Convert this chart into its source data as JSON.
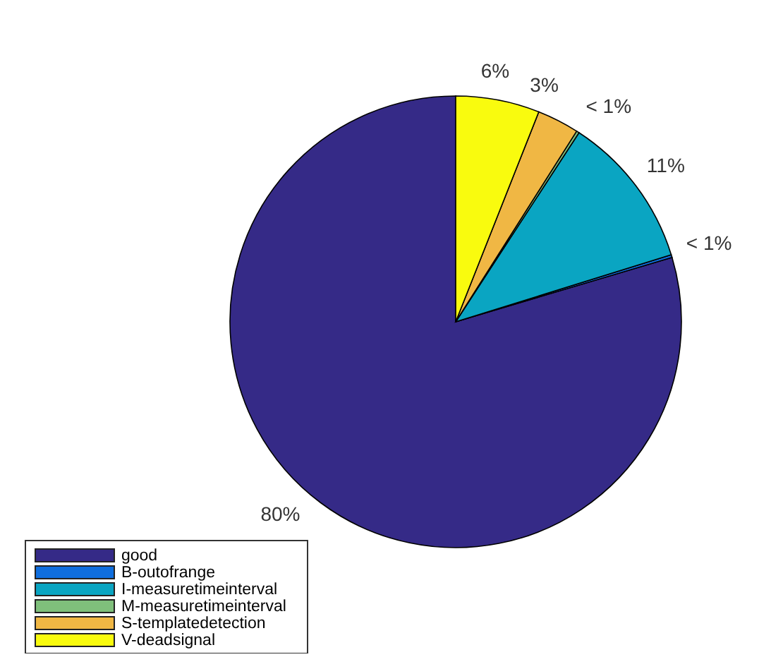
{
  "chart_data": {
    "type": "pie",
    "categories": [
      "good",
      "B-outofrange",
      "I-measuretimeinterval",
      "M-measuretimeinterval",
      "S-templatedetection",
      "V-deadsignal"
    ],
    "values": [
      79.6,
      0.2,
      11,
      0.2,
      3,
      6
    ],
    "colors": [
      "#352a87",
      "#0f6ede",
      "#0aa5c2",
      "#7fbf7b",
      "#f0b744",
      "#f9fb0e"
    ],
    "value_labels": [
      "80%",
      "< 1%",
      "11%",
      "< 1%",
      "3%",
      "6%"
    ],
    "legend": "bottom left"
  }
}
